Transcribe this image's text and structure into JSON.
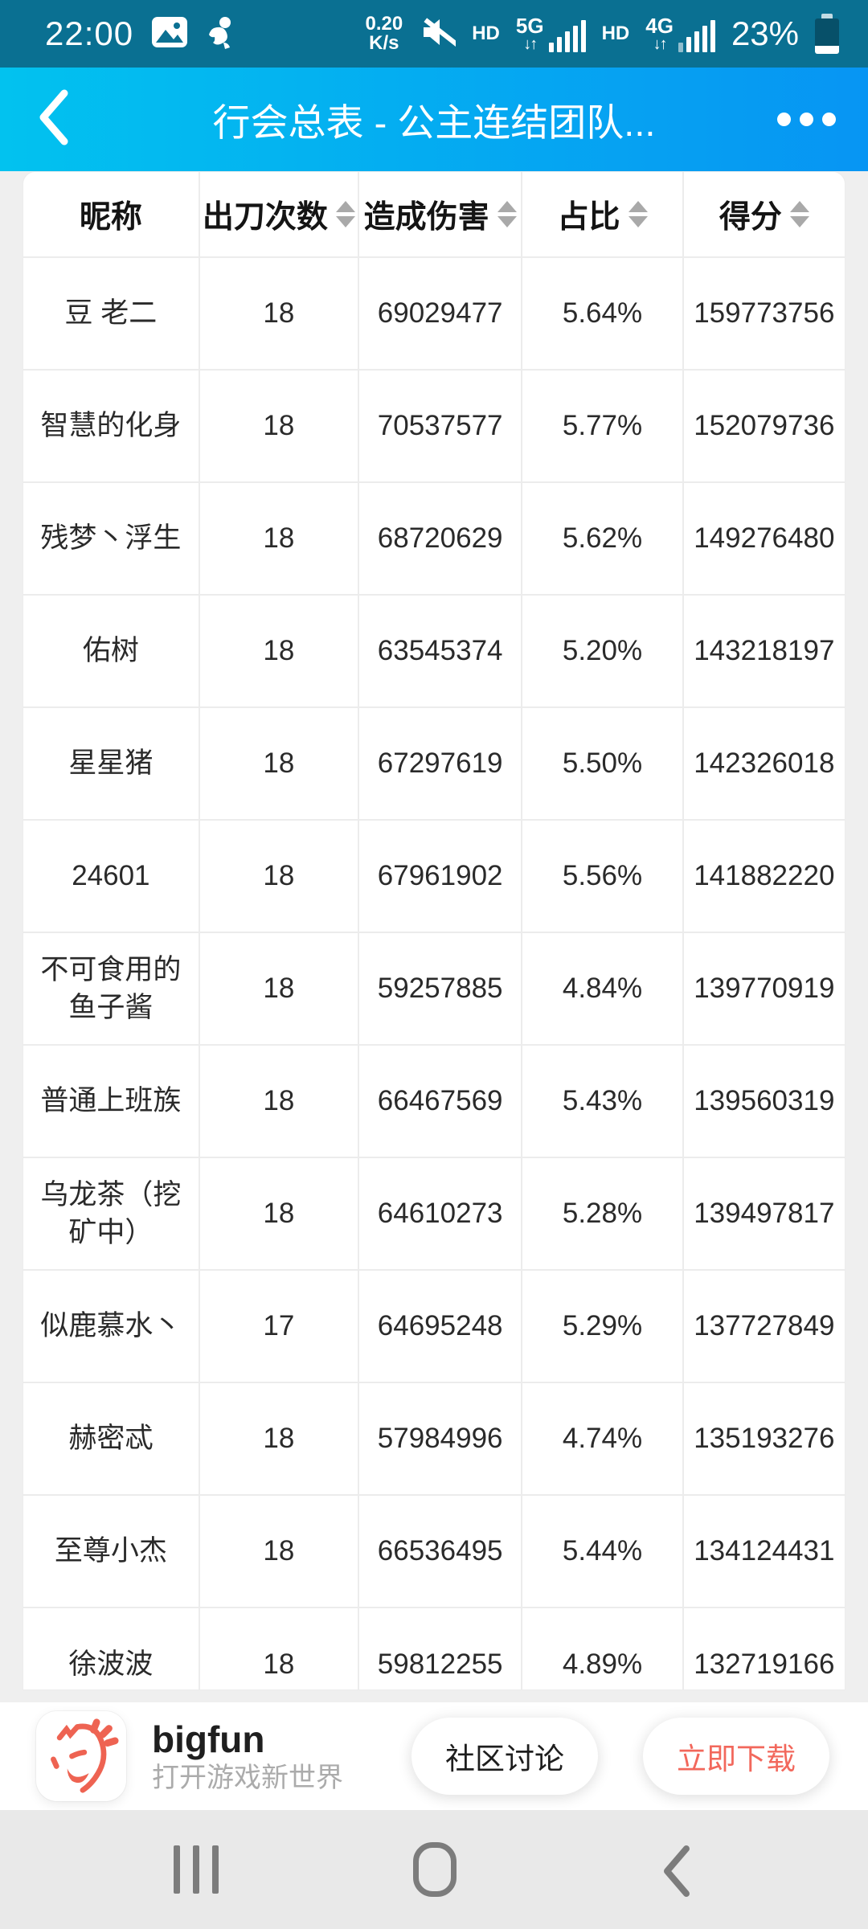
{
  "status_bar": {
    "time": "22:00",
    "net_speed_value": "0.20",
    "net_speed_unit": "K/s",
    "volte_label_sim1": "HD",
    "sim1_network": "5G",
    "sim1_arrows": "↓↑",
    "volte_label_sim2": "HD",
    "sim2_network": "4G",
    "sim2_arrows": "↓↑",
    "battery_percent": "23%"
  },
  "header": {
    "title": "行会总表 - 公主连结团队..."
  },
  "table": {
    "columns": [
      {
        "label": "昵称",
        "sortable": false
      },
      {
        "label": "出刀次数",
        "sortable": true
      },
      {
        "label": "造成伤害",
        "sortable": true
      },
      {
        "label": "占比",
        "sortable": true
      },
      {
        "label": "得分",
        "sortable": true
      }
    ],
    "rows": [
      [
        "豆 老二",
        "18",
        "69029477",
        "5.64%",
        "159773756"
      ],
      [
        "智慧的化身",
        "18",
        "70537577",
        "5.77%",
        "152079736"
      ],
      [
        "残梦丶浮生",
        "18",
        "68720629",
        "5.62%",
        "149276480"
      ],
      [
        "佑树",
        "18",
        "63545374",
        "5.20%",
        "143218197"
      ],
      [
        "星星猪",
        "18",
        "67297619",
        "5.50%",
        "142326018"
      ],
      [
        "24601",
        "18",
        "67961902",
        "5.56%",
        "141882220"
      ],
      [
        "不可食用的鱼子酱",
        "18",
        "59257885",
        "4.84%",
        "139770919"
      ],
      [
        "普通上班族",
        "18",
        "66467569",
        "5.43%",
        "139560319"
      ],
      [
        "乌龙茶（挖矿中）",
        "18",
        "64610273",
        "5.28%",
        "139497817"
      ],
      [
        "似鹿慕水丶",
        "17",
        "64695248",
        "5.29%",
        "137727849"
      ],
      [
        "赫密忒",
        "18",
        "57984996",
        "4.74%",
        "135193276"
      ],
      [
        "至尊小杰",
        "18",
        "66536495",
        "5.44%",
        "134124431"
      ],
      [
        "徐波波",
        "18",
        "59812255",
        "4.89%",
        "132719166"
      ]
    ]
  },
  "banner": {
    "app_name": "bigfun",
    "tagline": "打开游戏新世界",
    "community_button": "社区讨论",
    "download_button": "立即下载"
  },
  "icons": {
    "status_bar": [
      "gallery-icon",
      "person-icon",
      "mute-icon",
      "signal-bars-icon",
      "battery-icon"
    ],
    "header": [
      "back-chevron-icon",
      "more-menu-icon"
    ],
    "nav_bar": [
      "recents-icon",
      "home-icon",
      "back-icon"
    ]
  },
  "colors": {
    "status_bar_bg": "#0A7092",
    "header_gradient_start": "#02C2EF",
    "header_gradient_end": "#0795F3",
    "page_bg": "#EFEFEF",
    "accent_coral": "#F2685C",
    "sort_arrow": "#A9A9A9",
    "nav_icon": "#7C7C7C"
  }
}
